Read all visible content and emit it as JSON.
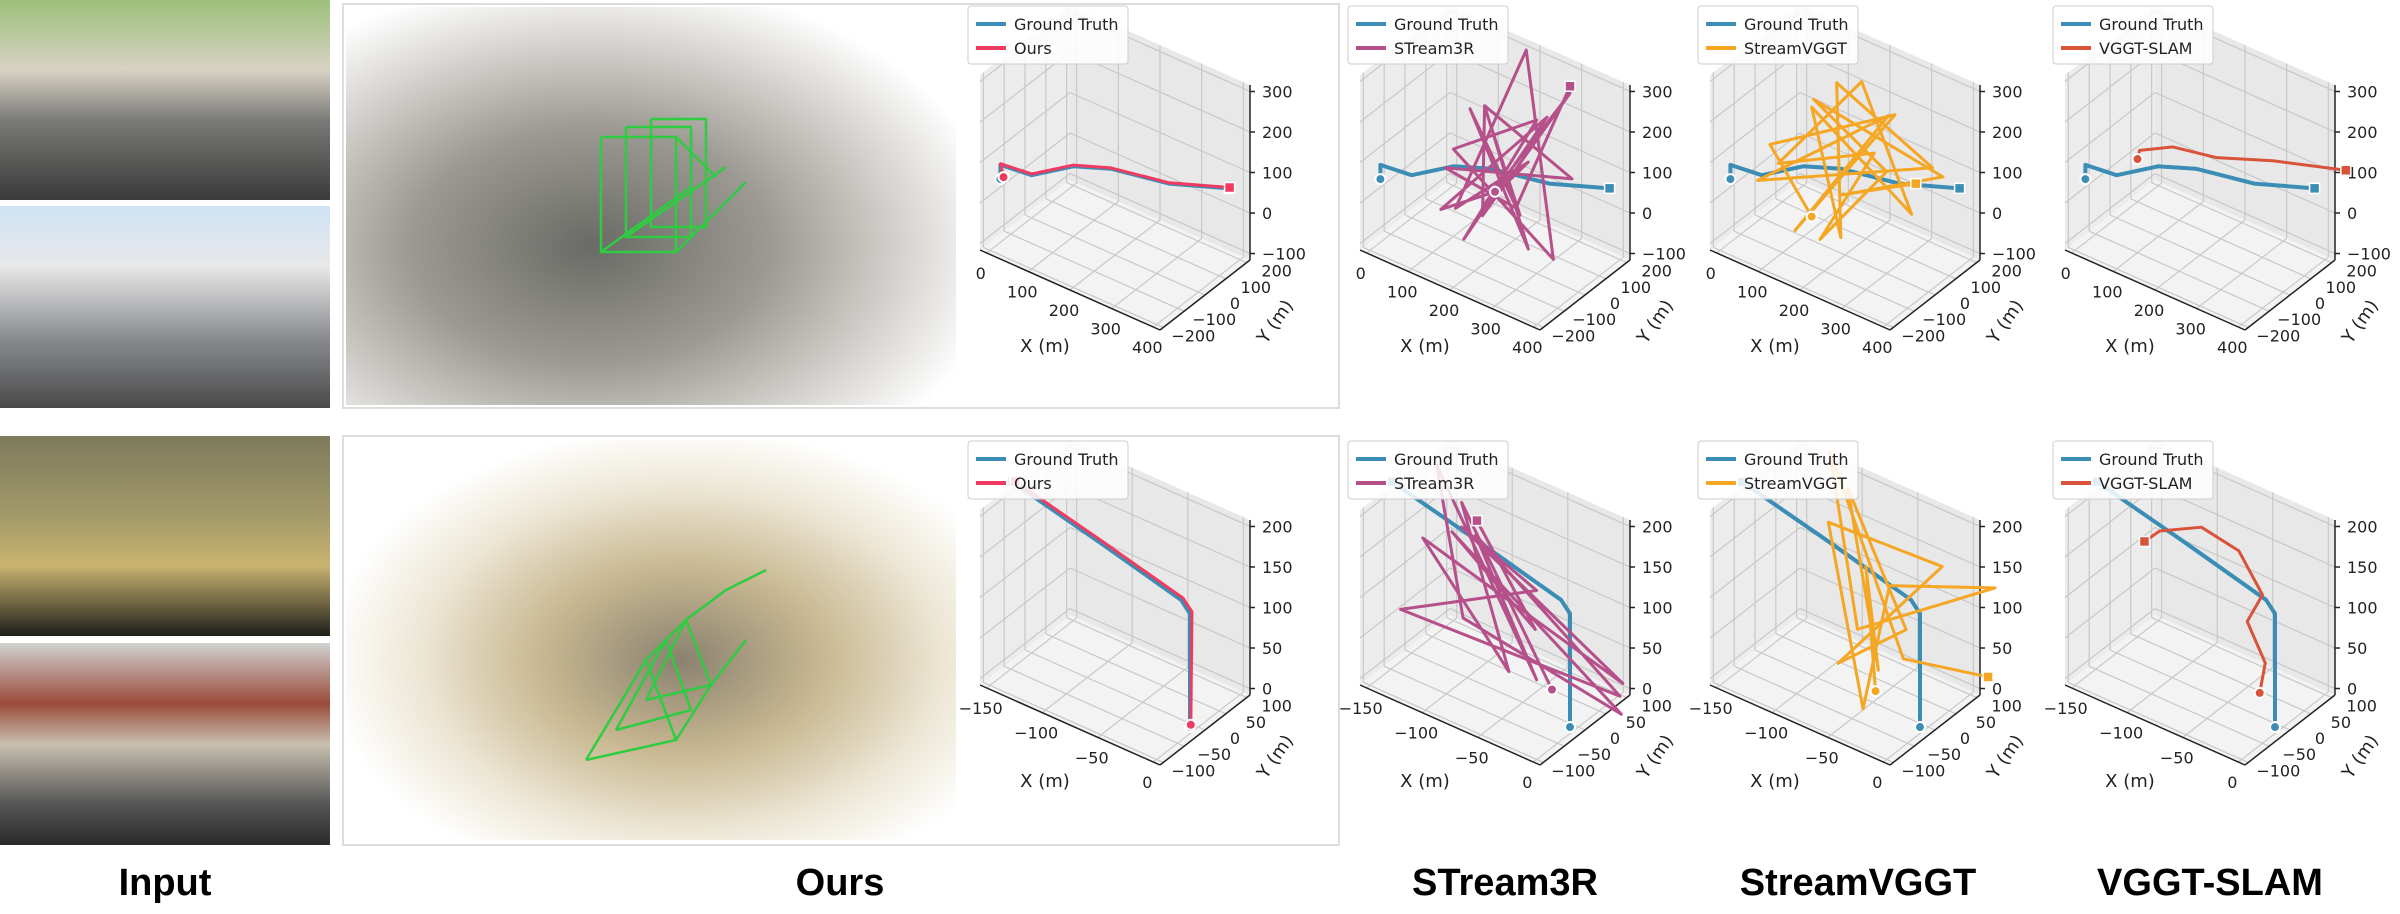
{
  "labels": {
    "input": "Input",
    "ours": "Ours",
    "stream3r": "STream3R",
    "streamvggt": "StreamVGGT",
    "vggtslam": "VGGT-SLAM"
  },
  "colors": {
    "ground_truth": "#3b8db5",
    "ours": "#f03a5f",
    "stream3r": "#b5508a",
    "streamvggt": "#f5a623",
    "vggtslam": "#d9533a",
    "camera_frustum": "#2ecc40"
  },
  "chart_data": [
    {
      "type": "line3d",
      "row": 1,
      "method": "Ours",
      "legend": [
        "Ground Truth",
        "Ours"
      ],
      "xlabel": "X (m)",
      "ylabel": "Y (m)",
      "xticks": [
        0,
        100,
        200,
        300,
        400
      ],
      "yticks": [
        -200,
        -100,
        0,
        100,
        200
      ],
      "zticks": [
        -100,
        0,
        100,
        200,
        300
      ],
      "grid": true,
      "legend_position": "top-left",
      "series": [
        {
          "name": "Ground Truth",
          "points": [
            [
              0,
              -150,
              40
            ],
            [
              0,
              -150,
              75
            ],
            [
              60,
              -120,
              65
            ],
            [
              130,
              -60,
              95
            ],
            [
              200,
              -20,
              105
            ],
            [
              300,
              60,
              82
            ],
            [
              400,
              150,
              80
            ]
          ]
        },
        {
          "name": "Ours",
          "points": [
            [
              5,
              -145,
              45
            ],
            [
              0,
              -150,
              78
            ],
            [
              60,
              -120,
              68
            ],
            [
              130,
              -60,
              98
            ],
            [
              200,
              -20,
              107
            ],
            [
              300,
              60,
              84
            ],
            [
              400,
              150,
              82
            ]
          ]
        }
      ]
    },
    {
      "type": "line3d",
      "row": 1,
      "method": "STream3R",
      "legend": [
        "Ground Truth",
        "STream3R"
      ],
      "xlabel": "X (m)",
      "ylabel": "Y (m)",
      "xticks": [
        0,
        100,
        200,
        300,
        400
      ],
      "yticks": [
        -200,
        -100,
        0,
        100,
        200
      ],
      "zticks": [
        -100,
        0,
        100,
        200,
        300
      ],
      "grid": true,
      "legend_position": "top-left",
      "series": [
        {
          "name": "Ground Truth",
          "points": [
            [
              0,
              -150,
              40
            ],
            [
              0,
              -150,
              75
            ],
            [
              60,
              -120,
              65
            ],
            [
              130,
              -60,
              95
            ],
            [
              200,
              -20,
              105
            ],
            [
              300,
              60,
              82
            ],
            [
              400,
              150,
              80
            ]
          ]
        },
        {
          "name": "STream3R",
          "points": [
            [
              200,
              0,
              40
            ],
            [
              120,
              -100,
              0
            ],
            [
              300,
              50,
              250
            ],
            [
              150,
              -50,
              -80
            ],
            [
              250,
              100,
              200
            ],
            [
              100,
              0,
              100
            ],
            [
              350,
              -20,
              -50
            ],
            [
              200,
              150,
              330
            ],
            [
              180,
              -150,
              50
            ],
            [
              280,
              0,
              150
            ],
            [
              130,
              80,
              -60
            ],
            [
              320,
              120,
              290
            ],
            [
              220,
              -100,
              30
            ],
            [
              160,
              30,
              220
            ],
            [
              300,
              -80,
              60
            ],
            [
              110,
              60,
              180
            ],
            [
              260,
              40,
              -90
            ],
            [
              190,
              -30,
              260
            ],
            [
              340,
              90,
              100
            ],
            [
              140,
              -120,
              120
            ],
            [
              240,
              20,
              10
            ],
            [
              330,
              100,
              320
            ]
          ]
        }
      ]
    },
    {
      "type": "line3d",
      "row": 1,
      "method": "StreamVGGT",
      "legend": [
        "Ground Truth",
        "StreamVGGT"
      ],
      "xlabel": "X (m)",
      "ylabel": "Y (m)",
      "xticks": [
        0,
        100,
        200,
        300,
        400
      ],
      "yticks": [
        -200,
        -100,
        0,
        100,
        200
      ],
      "zticks": [
        -100,
        0,
        100,
        200,
        300
      ],
      "grid": true,
      "legend_position": "top-left",
      "series": [
        {
          "name": "Ground Truth",
          "points": [
            [
              0,
              -150,
              40
            ],
            [
              0,
              -150,
              75
            ],
            [
              60,
              -120,
              65
            ],
            [
              130,
              -60,
              95
            ],
            [
              200,
              -20,
              105
            ],
            [
              300,
              60,
              82
            ],
            [
              400,
              150,
              80
            ]
          ]
        },
        {
          "name": "StreamVGGT",
          "points": [
            [
              150,
              -60,
              -20
            ],
            [
              80,
              -120,
              150
            ],
            [
              300,
              40,
              260
            ],
            [
              120,
              -80,
              -60
            ],
            [
              260,
              90,
              220
            ],
            [
              60,
              -140,
              60
            ],
            [
              350,
              120,
              120
            ],
            [
              180,
              0,
              300
            ],
            [
              220,
              -60,
              -40
            ],
            [
              110,
              20,
              200
            ],
            [
              330,
              60,
              20
            ],
            [
              200,
              80,
              280
            ],
            [
              90,
              -100,
              100
            ],
            [
              280,
              -20,
              180
            ],
            [
              160,
              -40,
              -80
            ],
            [
              240,
              120,
              60
            ],
            [
              130,
              -10,
              240
            ],
            [
              360,
              150,
              90
            ],
            [
              200,
              -20,
              40
            ],
            [
              320,
              100,
              75
            ]
          ]
        }
      ]
    },
    {
      "type": "line3d",
      "row": 1,
      "method": "VGGT-SLAM",
      "legend": [
        "Ground Truth",
        "VGGT-SLAM"
      ],
      "xlabel": "X (m)",
      "ylabel": "Y (m)",
      "xticks": [
        0,
        100,
        200,
        300,
        400
      ],
      "yticks": [
        -200,
        -100,
        0,
        100,
        200
      ],
      "zticks": [
        -100,
        0,
        100,
        200,
        300
      ],
      "grid": true,
      "legend_position": "top-left",
      "series": [
        {
          "name": "Ground Truth",
          "points": [
            [
              0,
              -150,
              40
            ],
            [
              0,
              -150,
              75
            ],
            [
              60,
              -120,
              65
            ],
            [
              130,
              -60,
              95
            ],
            [
              200,
              -20,
              105
            ],
            [
              300,
              60,
              82
            ],
            [
              400,
              150,
              80
            ]
          ]
        },
        {
          "name": "VGGT-SLAM",
          "points": [
            [
              80,
              -60,
              90
            ],
            [
              90,
              -70,
              120
            ],
            [
              150,
              -30,
              140
            ],
            [
              230,
              20,
              130
            ],
            [
              330,
              90,
              140
            ],
            [
              460,
              180,
              140
            ]
          ]
        }
      ]
    },
    {
      "type": "line3d",
      "row": 2,
      "method": "Ours",
      "legend": [
        "Ground Truth",
        "Ours"
      ],
      "xlabel": "X (m)",
      "ylabel": "Y (m)",
      "xticks": [
        -150,
        -100,
        -50,
        0
      ],
      "yticks": [
        -100,
        -50,
        0,
        50,
        100
      ],
      "zticks": [
        0,
        50,
        100,
        150,
        200
      ],
      "grid": true,
      "legend_position": "top-left",
      "series": [
        {
          "name": "Ground Truth",
          "points": [
            [
              0,
              -20,
              0
            ],
            [
              0,
              -20,
              140
            ],
            [
              -8,
              -20,
              152
            ],
            [
              -80,
              -20,
              178
            ],
            [
              -160,
              -20,
              205
            ]
          ]
        },
        {
          "name": "Ours",
          "points": [
            [
              0,
              -18,
              2
            ],
            [
              1,
              -18,
              142
            ],
            [
              -7,
              -18,
              154
            ],
            [
              -80,
              -18,
              180
            ],
            [
              -158,
              -18,
              206
            ]
          ]
        }
      ]
    },
    {
      "type": "line3d",
      "row": 2,
      "method": "STream3R",
      "legend": [
        "Ground Truth",
        "STream3R"
      ],
      "xlabel": "X (m)",
      "ylabel": "Y (m)",
      "xticks": [
        -150,
        -100,
        -50,
        0
      ],
      "yticks": [
        -100,
        -50,
        0,
        50,
        100
      ],
      "zticks": [
        0,
        50,
        100,
        150,
        200
      ],
      "grid": true,
      "legend_position": "top-left",
      "series": [
        {
          "name": "Ground Truth",
          "points": [
            [
              0,
              -20,
              0
            ],
            [
              0,
              -20,
              140
            ],
            [
              -8,
              -20,
              152
            ],
            [
              -80,
              -20,
              178
            ],
            [
              -160,
              -20,
              205
            ]
          ]
        },
        {
          "name": "STream3R",
          "points": [
            [
              -20,
              -10,
              30
            ],
            [
              -120,
              40,
              180
            ],
            [
              -40,
              -60,
              60
            ],
            [
              -140,
              0,
              140
            ],
            [
              10,
              80,
              20
            ],
            [
              -90,
              -40,
              200
            ],
            [
              -60,
              60,
              100
            ],
            [
              -130,
              -80,
              90
            ],
            [
              0,
              100,
              -10
            ],
            [
              -100,
              20,
              160
            ],
            [
              -30,
              -20,
              40
            ],
            [
              -150,
              60,
              200
            ],
            [
              -70,
              -90,
              120
            ],
            [
              20,
              50,
              0
            ],
            [
              -110,
              -10,
              170
            ],
            [
              -50,
              30,
              70
            ],
            [
              -80,
              -30,
              210
            ]
          ]
        }
      ]
    },
    {
      "type": "line3d",
      "row": 2,
      "method": "StreamVGGT",
      "legend": [
        "Ground Truth",
        "StreamVGGT"
      ],
      "xlabel": "X (m)",
      "ylabel": "Y (m)",
      "xticks": [
        -150,
        -100,
        -50,
        0
      ],
      "yticks": [
        -100,
        -50,
        0,
        50,
        100
      ],
      "zticks": [
        0,
        50,
        100,
        150,
        200
      ],
      "grid": true,
      "legend_position": "top-left",
      "series": [
        {
          "name": "Ground Truth",
          "points": [
            [
              0,
              -20,
              0
            ],
            [
              0,
              -20,
              140
            ],
            [
              -8,
              -20,
              152
            ],
            [
              -80,
              -20,
              178
            ],
            [
              -160,
              -20,
              205
            ]
          ]
        },
        {
          "name": "StreamVGGT",
          "points": [
            [
              -40,
              -20,
              20
            ],
            [
              -60,
              10,
              150
            ],
            [
              -30,
              -40,
              60
            ],
            [
              -80,
              20,
              230
            ],
            [
              -20,
              0,
              100
            ],
            [
              -70,
              -30,
              40
            ],
            [
              -10,
              60,
              160
            ],
            [
              -90,
              0,
              190
            ],
            [
              -40,
              -50,
              10
            ],
            [
              -50,
              40,
              120
            ],
            [
              30,
              80,
              150
            ],
            [
              -60,
              -10,
              80
            ],
            [
              -100,
              30,
              260
            ],
            [
              -30,
              20,
              50
            ],
            [
              20,
              90,
              30
            ]
          ]
        }
      ]
    },
    {
      "type": "line3d",
      "row": 2,
      "method": "VGGT-SLAM",
      "legend": [
        "Ground Truth",
        "VGGT-SLAM"
      ],
      "xlabel": "X (m)",
      "ylabel": "Y (m)",
      "xticks": [
        -150,
        -100,
        -50,
        0
      ],
      "yticks": [
        -100,
        -50,
        0,
        50,
        100
      ],
      "zticks": [
        0,
        50,
        100,
        150,
        200
      ],
      "grid": true,
      "legend_position": "top-left",
      "series": [
        {
          "name": "Ground Truth",
          "points": [
            [
              0,
              -20,
              0
            ],
            [
              0,
              -20,
              140
            ],
            [
              -8,
              -20,
              152
            ],
            [
              -80,
              -20,
              178
            ],
            [
              -160,
              -20,
              205
            ]
          ]
        },
        {
          "name": "VGGT-SLAM",
          "points": [
            [
              -10,
              -30,
              40
            ],
            [
              -5,
              -30,
              80
            ],
            [
              -25,
              -20,
              115
            ],
            [
              -15,
              -10,
              150
            ],
            [
              -40,
              0,
              185
            ],
            [
              -70,
              -10,
              200
            ],
            [
              -100,
              -30,
              185
            ],
            [
              -110,
              -40,
              170
            ]
          ]
        }
      ]
    }
  ]
}
